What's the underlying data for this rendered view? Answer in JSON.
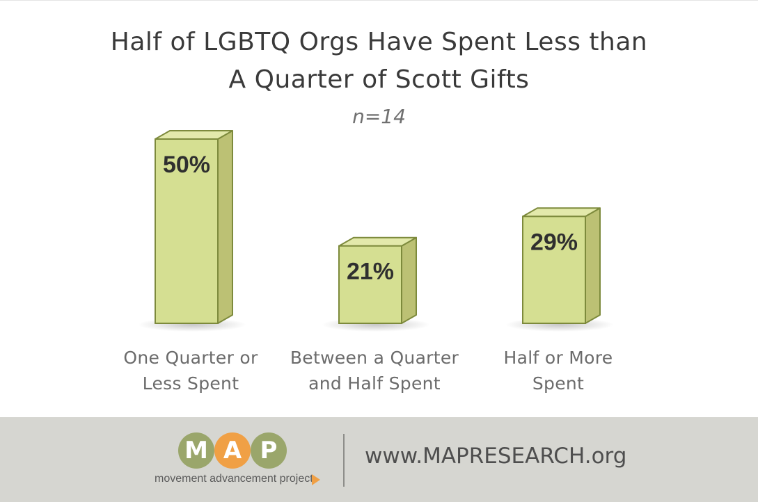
{
  "chart_data": {
    "type": "bar",
    "title_lines": [
      "Half of LGBTQ Orgs Have Spent Less than",
      "A Quarter of Scott Gifts"
    ],
    "subtitle": "n=14",
    "categories": [
      [
        "One Quarter or",
        "Less Spent"
      ],
      [
        "Between a Quarter",
        "and Half Spent"
      ],
      [
        "Half or More",
        "Spent"
      ]
    ],
    "values": [
      50,
      21,
      29
    ],
    "value_labels": [
      "50%",
      "21%",
      "29%"
    ],
    "unit": "%",
    "ylim": [
      0,
      50
    ],
    "grid": false,
    "legend": "none",
    "style": "3d-box",
    "colors": {
      "bar_front": "#d5df92",
      "bar_side": "#bcc174",
      "bar_top": "#e3e9ab",
      "bar_edge": "#7d8a3c",
      "label": "#2f2f2f"
    }
  },
  "footer": {
    "logo_letters": [
      "M",
      "A",
      "P"
    ],
    "logo_tagline": "movement advancement project",
    "logo_colors": [
      "#9aa66b",
      "#f0a045",
      "#9aa66b"
    ],
    "url": "www.MAPRESEARCH.org",
    "background": "#d6d6d1"
  }
}
